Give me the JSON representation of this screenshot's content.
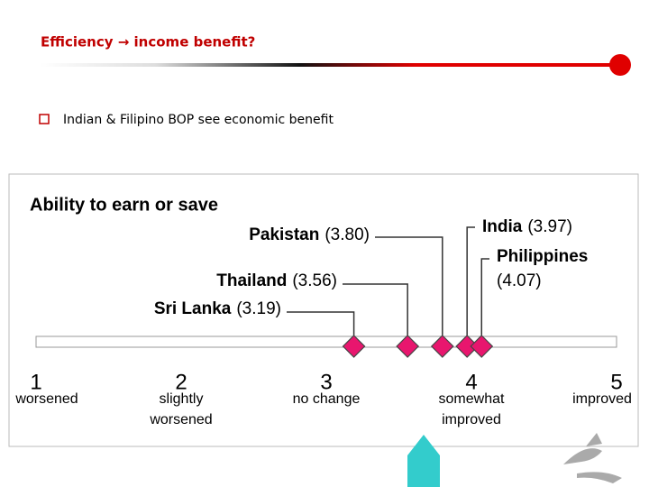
{
  "slide": {
    "title": "Efficiency → income benefit?",
    "bullet": "Indian & Filipino BOP see economic benefit"
  },
  "chart_data": {
    "type": "dotplot",
    "title": "Ability to earn or save",
    "categories": [
      "Sri Lanka",
      "Thailand",
      "Pakistan",
      "India",
      "Philippines"
    ],
    "values": [
      3.19,
      3.56,
      3.8,
      3.97,
      4.07
    ],
    "value_labels": [
      "(3.19)",
      "(3.56)",
      "(3.80)",
      "(3.97)",
      "(4.07)"
    ],
    "color": "#e8166e",
    "xlim": [
      1,
      5
    ],
    "xticks": [
      1,
      2,
      3,
      4,
      5
    ],
    "x_tick_descriptions": [
      [
        "worsened"
      ],
      [
        "slightly",
        "worsened"
      ],
      [
        "no change"
      ],
      [
        "somewhat",
        "improved"
      ],
      [
        "improved"
      ]
    ]
  }
}
